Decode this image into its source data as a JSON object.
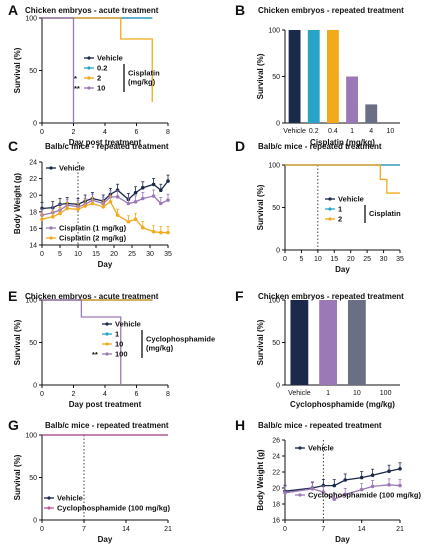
{
  "colors": {
    "vehicle": "#1b2a4a",
    "dose_low": "#2aa3c9",
    "dose_mid": "#f2a91c",
    "dose_high": "#9b78b6",
    "cyclo": "#c05a97",
    "black": "#111111"
  },
  "chart_data": [
    {
      "id": "A",
      "type": "line",
      "panel_label": "A",
      "title": "Chicken embryos - acute treatment",
      "xlabel": "Day post treatment",
      "ylabel": "Survival (%)",
      "xlim": [
        0,
        8
      ],
      "ylim": [
        0,
        100
      ],
      "xticks": [
        "0",
        "2",
        "4",
        "6",
        "8"
      ],
      "yticks": [
        "0",
        "50",
        "100"
      ],
      "legend_title": "Cisplatin\n(mg/kg)",
      "series": [
        {
          "name": "Vehicle",
          "color": "vehicle",
          "x": [
            0,
            7
          ],
          "y": [
            100,
            100
          ],
          "step": true
        },
        {
          "name": "0.2",
          "color": "dose_low",
          "x": [
            0,
            7
          ],
          "y": [
            100,
            100
          ],
          "step": true
        },
        {
          "name": "2",
          "color": "dose_mid",
          "x": [
            0,
            5,
            7
          ],
          "y": [
            100,
            80,
            20
          ],
          "step": true,
          "sig": "*"
        },
        {
          "name": "10",
          "color": "dose_high",
          "x": [
            0,
            2
          ],
          "y": [
            100,
            0
          ],
          "step": true,
          "sig": "**"
        }
      ]
    },
    {
      "id": "B",
      "type": "bar",
      "panel_label": "B",
      "title": "Chicken embryos - repeated treatment",
      "xlabel": "Cisplatin (mg/kg)",
      "ylabel": "Survival (%)",
      "ylim": [
        0,
        100
      ],
      "yticks": [
        "0",
        "50",
        "100"
      ],
      "categories": [
        "Vehicle",
        "0.2",
        "0.4",
        "1",
        "4",
        "10"
      ],
      "values": [
        100,
        100,
        100,
        50,
        20,
        0
      ],
      "bar_colors": [
        "vehicle",
        "dose_low",
        "dose_mid",
        "dose_high",
        "#6b6f86",
        "#6b6f86"
      ]
    },
    {
      "id": "C",
      "type": "line",
      "panel_label": "C",
      "title": "Balb/c mice - repeated treatment",
      "xlabel": "Day",
      "ylabel": "Body Weight (g)",
      "xlim": [
        0,
        35
      ],
      "ylim": [
        14,
        24
      ],
      "xticks": [
        "0",
        "5",
        "10",
        "15",
        "20",
        "25",
        "30",
        "35"
      ],
      "yticks": [
        "14",
        "16",
        "18",
        "20",
        "22",
        "24"
      ],
      "vline": 10,
      "series": [
        {
          "name": "Vehicle",
          "color": "vehicle",
          "x": [
            0,
            3,
            5,
            7,
            10,
            12,
            14,
            17,
            19,
            21,
            24,
            26,
            28,
            31,
            33,
            35
          ],
          "y": [
            18.4,
            18.5,
            18.9,
            19.0,
            18.9,
            19.3,
            19.6,
            19.3,
            20.1,
            20.6,
            19.5,
            20.3,
            20.9,
            21.3,
            20.6,
            21.7
          ]
        },
        {
          "name": "Cisplatin (1 mg/kg)",
          "color": "dose_high",
          "x": [
            0,
            3,
            5,
            7,
            10,
            12,
            14,
            17,
            19,
            21,
            24,
            26,
            28,
            31,
            33,
            35
          ],
          "y": [
            17.6,
            17.9,
            18.2,
            18.8,
            18.6,
            18.9,
            19.4,
            19.0,
            19.8,
            19.8,
            19.0,
            19.2,
            19.6,
            19.9,
            19.0,
            19.4
          ]
        },
        {
          "name": "Cisplatin (2 mg/kg)",
          "color": "dose_mid",
          "x": [
            0,
            3,
            5,
            7,
            10,
            12,
            14,
            17,
            19,
            21,
            24,
            26,
            28,
            31,
            33,
            35
          ],
          "y": [
            17.1,
            17.4,
            17.8,
            18.4,
            18.3,
            18.7,
            19.0,
            18.6,
            19.2,
            17.6,
            16.8,
            17.1,
            16.1,
            15.6,
            15.5,
            15.5
          ]
        }
      ]
    },
    {
      "id": "D",
      "type": "line",
      "panel_label": "D",
      "title": "Balb/c mice - repeated treatment",
      "xlabel": "Day",
      "ylabel": "Survival (%)",
      "xlim": [
        0,
        35
      ],
      "ylim": [
        0,
        100
      ],
      "xticks": [
        "0",
        "5",
        "10",
        "15",
        "20",
        "25",
        "30",
        "35"
      ],
      "yticks": [
        "0",
        "50",
        "100"
      ],
      "vline": 10,
      "legend_title": "Cisplatin",
      "series": [
        {
          "name": "Vehicle",
          "color": "vehicle",
          "x": [
            0,
            35
          ],
          "y": [
            100,
            100
          ],
          "step": true
        },
        {
          "name": "1",
          "color": "dose_low",
          "x": [
            0,
            35
          ],
          "y": [
            100,
            100
          ],
          "step": true
        },
        {
          "name": "2",
          "color": "dose_mid",
          "x": [
            0,
            29,
            31,
            35
          ],
          "y": [
            100,
            83,
            67,
            67
          ],
          "step": true
        }
      ]
    },
    {
      "id": "E",
      "type": "line",
      "panel_label": "E",
      "title": "Chicken embryos - acute treatment",
      "xlabel": "Day post treatment",
      "ylabel": "Survival (%)",
      "xlim": [
        0,
        8
      ],
      "ylim": [
        0,
        100
      ],
      "xticks": [
        "0",
        "2",
        "4",
        "6",
        "8"
      ],
      "yticks": [
        "0",
        "50",
        "100"
      ],
      "legend_title": "Cyclophosphamide\n(mg/kg)",
      "series": [
        {
          "name": "Vehicle",
          "color": "vehicle",
          "x": [
            0,
            7
          ],
          "y": [
            100,
            100
          ],
          "step": true
        },
        {
          "name": "1",
          "color": "dose_low",
          "x": [
            0,
            7
          ],
          "y": [
            100,
            100
          ],
          "step": true
        },
        {
          "name": "10",
          "color": "dose_mid",
          "x": [
            0,
            7
          ],
          "y": [
            100,
            100
          ],
          "step": true
        },
        {
          "name": "100",
          "color": "dose_high",
          "x": [
            0,
            2.5,
            5
          ],
          "y": [
            100,
            80,
            0
          ],
          "step": true,
          "sig": "**"
        }
      ]
    },
    {
      "id": "F",
      "type": "bar",
      "panel_label": "F",
      "title": "Chicken embryos - repeated treatment",
      "xlabel": "Cyclophosphamide (mg/kg)",
      "ylabel": "Survival (%)",
      "ylim": [
        0,
        100
      ],
      "yticks": [
        "0",
        "50",
        "100"
      ],
      "categories": [
        "Vehicle",
        "1",
        "10",
        "100"
      ],
      "values": [
        100,
        100,
        100,
        0
      ],
      "bar_colors": [
        "vehicle",
        "dose_high",
        "#6b6f86",
        "#6b6f86"
      ]
    },
    {
      "id": "G",
      "type": "line",
      "panel_label": "G",
      "title": "Balb/c mice - repeated treatment",
      "xlabel": "Day",
      "ylabel": "Survival (%)",
      "xlim": [
        0,
        21
      ],
      "ylim": [
        0,
        100
      ],
      "xticks": [
        "0",
        "7",
        "14",
        "21"
      ],
      "yticks": [
        "0",
        "50",
        "100"
      ],
      "vline": 7,
      "series": [
        {
          "name": "Vehicle",
          "color": "vehicle",
          "x": [
            0,
            21
          ],
          "y": [
            100,
            100
          ],
          "step": true
        },
        {
          "name": "Cyclophosphamide (100 mg/kg)",
          "color": "cyclo",
          "x": [
            0,
            21
          ],
          "y": [
            100,
            100
          ],
          "step": true
        }
      ]
    },
    {
      "id": "H",
      "type": "line",
      "panel_label": "H",
      "title": "Balb/c mice - repeated treatment",
      "xlabel": "Day",
      "ylabel": "Body Weight (g)",
      "xlim": [
        0,
        21
      ],
      "ylim": [
        16,
        26
      ],
      "xticks": [
        "0",
        "7",
        "14",
        "21"
      ],
      "yticks": [
        "16",
        "18",
        "20",
        "22",
        "24",
        "26"
      ],
      "vline": 7,
      "series": [
        {
          "name": "Vehicle",
          "color": "vehicle",
          "x": [
            0,
            5,
            7,
            9,
            11,
            14,
            16,
            19,
            21
          ],
          "y": [
            19.6,
            20.0,
            20.3,
            20.3,
            21.0,
            21.3,
            21.6,
            22.1,
            22.4
          ]
        },
        {
          "name": "Cyclophosphamide (100 mg/kg)",
          "color": "dose_high",
          "x": [
            0,
            5,
            7,
            9,
            11,
            14,
            16,
            19,
            21
          ],
          "y": [
            19.4,
            19.9,
            19.5,
            18.6,
            19.2,
            19.8,
            20.2,
            20.4,
            20.3
          ]
        }
      ]
    }
  ]
}
